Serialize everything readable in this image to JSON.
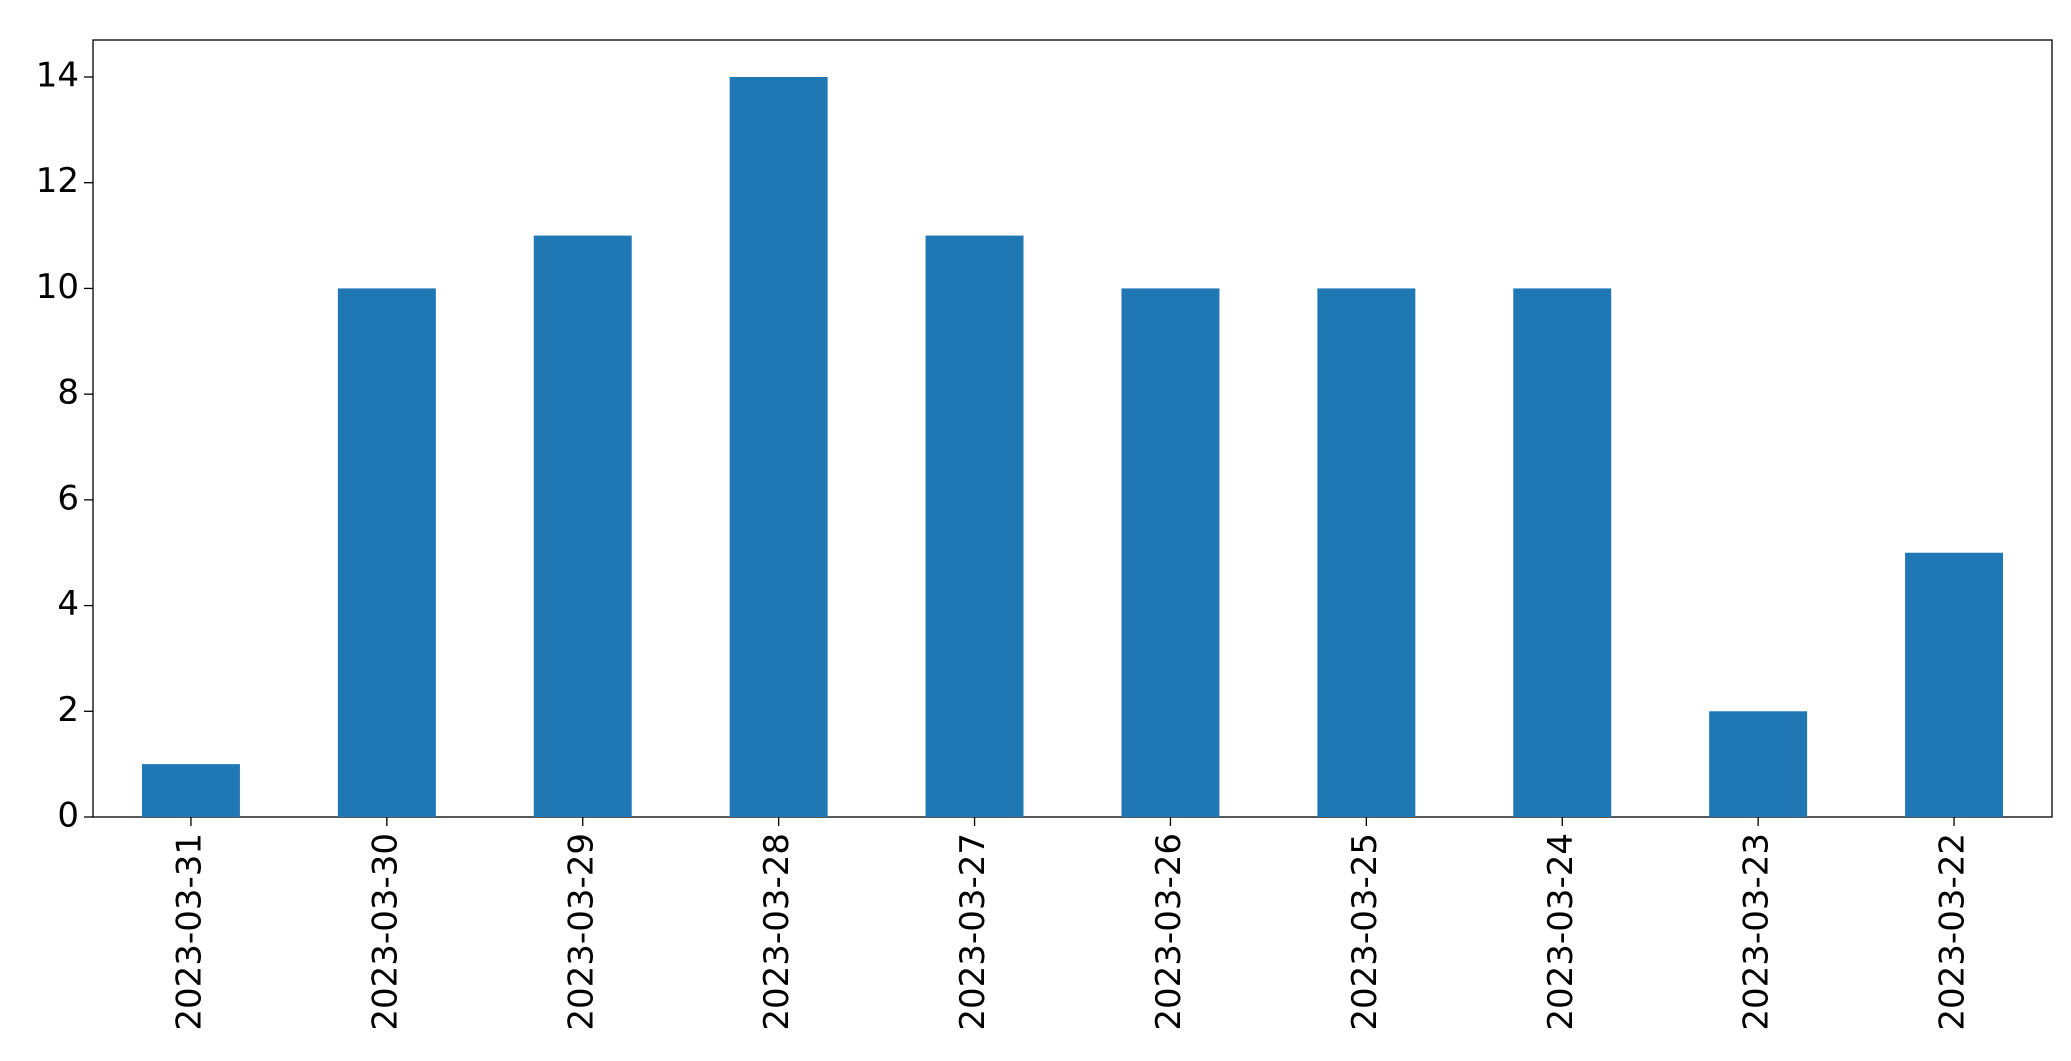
{
  "chart_data": {
    "type": "bar",
    "categories": [
      "2023-03-31",
      "2023-03-30",
      "2023-03-29",
      "2023-03-28",
      "2023-03-27",
      "2023-03-26",
      "2023-03-25",
      "2023-03-24",
      "2023-03-23",
      "2023-03-22"
    ],
    "values": [
      1,
      10,
      11,
      14,
      11,
      10,
      10,
      10,
      2,
      5
    ],
    "color": "#1f77b4",
    "ylim": [
      0,
      14.7
    ],
    "yticks": [
      0,
      2,
      4,
      6,
      8,
      10,
      12,
      14
    ],
    "grid": false
  }
}
